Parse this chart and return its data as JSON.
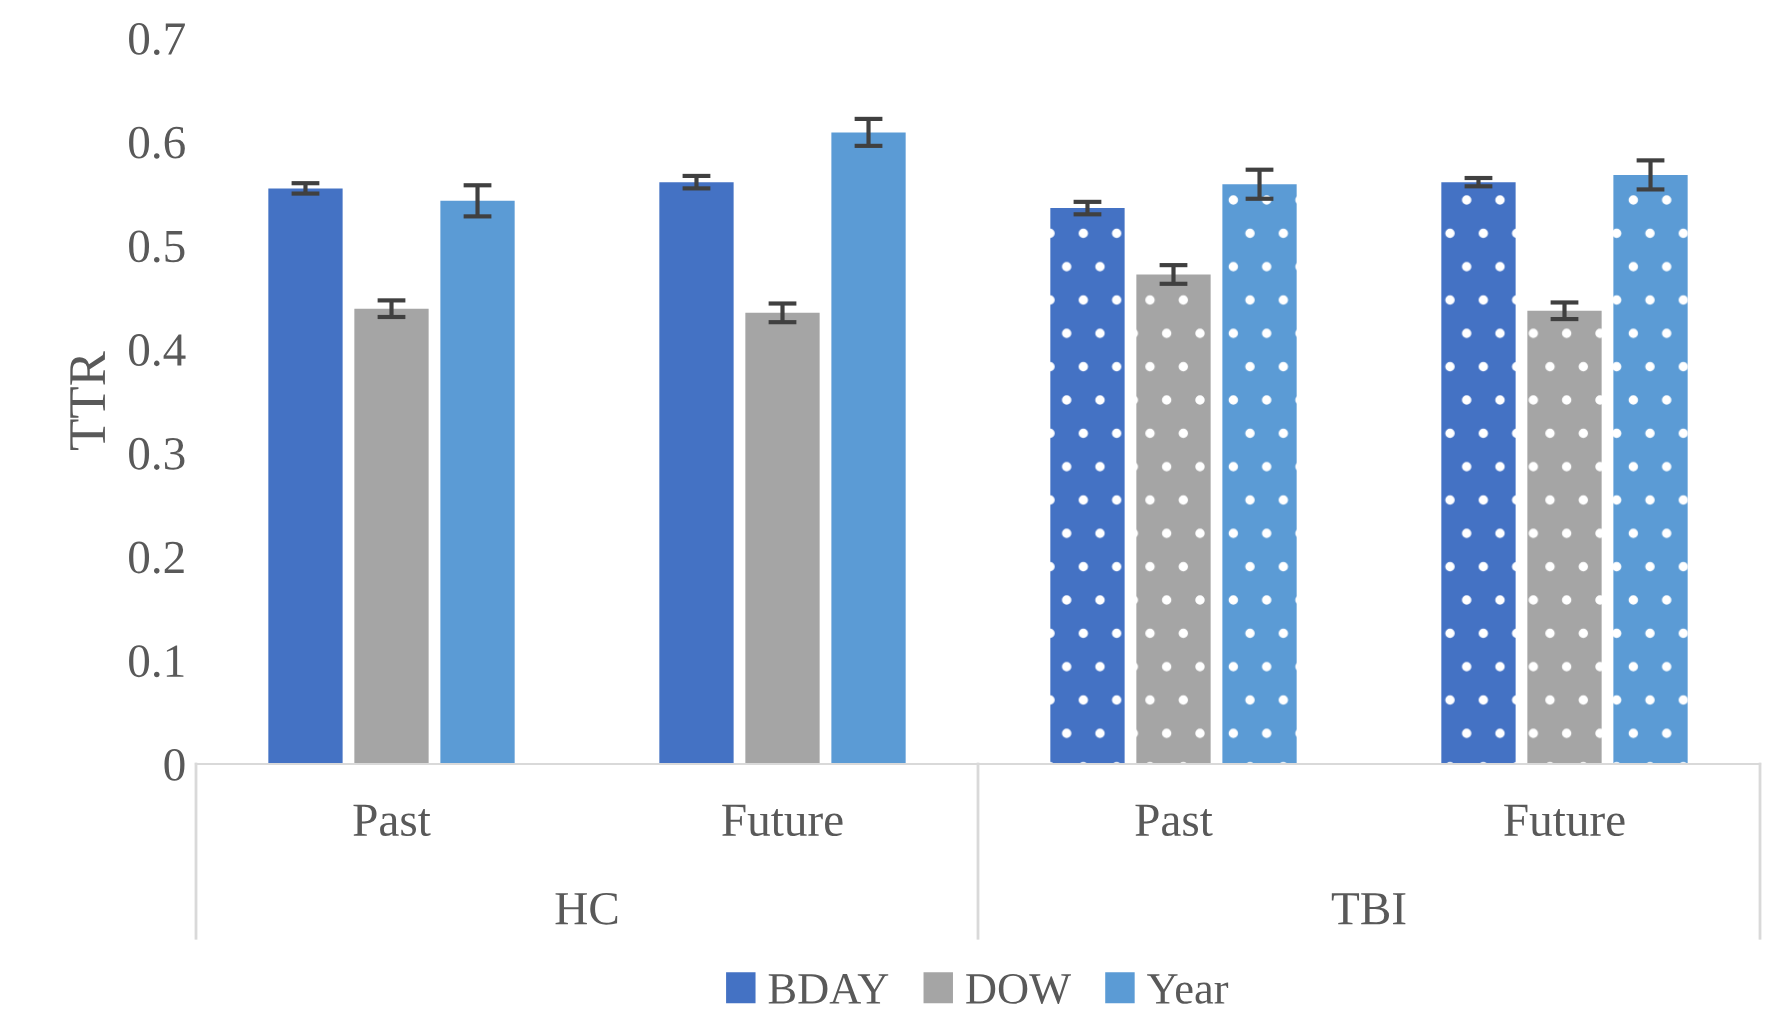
{
  "chart_data": {
    "type": "bar",
    "ylabel": "TTR",
    "categories": [
      "Past",
      "Future",
      "Past",
      "Future"
    ],
    "annotations": [
      "HC",
      "TBI"
    ],
    "series": [
      {
        "name": "BDAY",
        "color": "#4472c4",
        "values": [
          0.555,
          0.561,
          0.536,
          0.561
        ],
        "errors": [
          0.005,
          0.006,
          0.006,
          0.004
        ]
      },
      {
        "name": "DOW",
        "color": "#a5a5a5",
        "values": [
          0.439,
          0.435,
          0.472,
          0.437
        ],
        "errors": [
          0.008,
          0.009,
          0.009,
          0.008
        ]
      },
      {
        "name": "Year",
        "color": "#5b9bd5",
        "values": [
          0.543,
          0.609,
          0.559,
          0.568
        ],
        "errors": [
          0.015,
          0.013,
          0.014,
          0.014
        ]
      }
    ],
    "ylim": [
      0,
      0.7
    ],
    "yticks": [
      0,
      0.1,
      0.2,
      0.3,
      0.4,
      0.5,
      0.6,
      0.7
    ],
    "grid": false,
    "legend": "bottom"
  }
}
